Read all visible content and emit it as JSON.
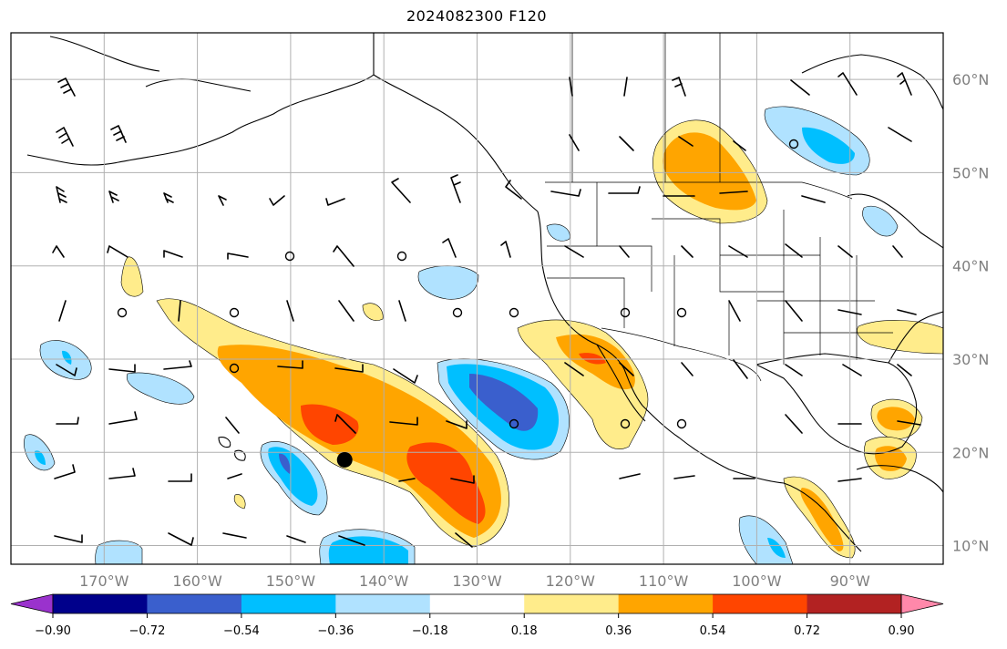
{
  "title": "2024082300 F120",
  "map": {
    "lon_range": [
      -180,
      -80
    ],
    "lat_range": [
      8,
      65
    ],
    "grid": true,
    "lat_labels": [
      {
        "lat": 10,
        "text": "10°N"
      },
      {
        "lat": 20,
        "text": "20°N"
      },
      {
        "lat": 30,
        "text": "30°N"
      },
      {
        "lat": 40,
        "text": "40°N"
      },
      {
        "lat": 50,
        "text": "50°N"
      },
      {
        "lat": 60,
        "text": "60°N"
      }
    ],
    "lon_labels": [
      {
        "lon": -170,
        "text": "170°W"
      },
      {
        "lon": -160,
        "text": "160°W"
      },
      {
        "lon": -150,
        "text": "150°W"
      },
      {
        "lon": -140,
        "text": "140°W"
      },
      {
        "lon": -130,
        "text": "130°W"
      },
      {
        "lon": -120,
        "text": "120°W"
      },
      {
        "lon": -110,
        "text": "110°W"
      },
      {
        "lon": -100,
        "text": "100°W"
      },
      {
        "lon": -90,
        "text": "90°W"
      }
    ],
    "marker": {
      "lon": -144.2,
      "lat": 19.2
    }
  },
  "colorbar": {
    "ticks": [
      "−0.90",
      "−0.72",
      "−0.54",
      "−0.36",
      "−0.18",
      "0.18",
      "0.36",
      "0.54",
      "0.72",
      "0.90"
    ],
    "colors": [
      "#9a32cd",
      "#00008b",
      "#3a5fcd",
      "#00bfff",
      "#b0e2ff",
      "#ffffff",
      "#ffec8b",
      "#ffa500",
      "#ff4500",
      "#b22222",
      "#ff88aa"
    ]
  },
  "colors": {
    "grid": "#b0b0b0",
    "land_outline": "#000000"
  }
}
